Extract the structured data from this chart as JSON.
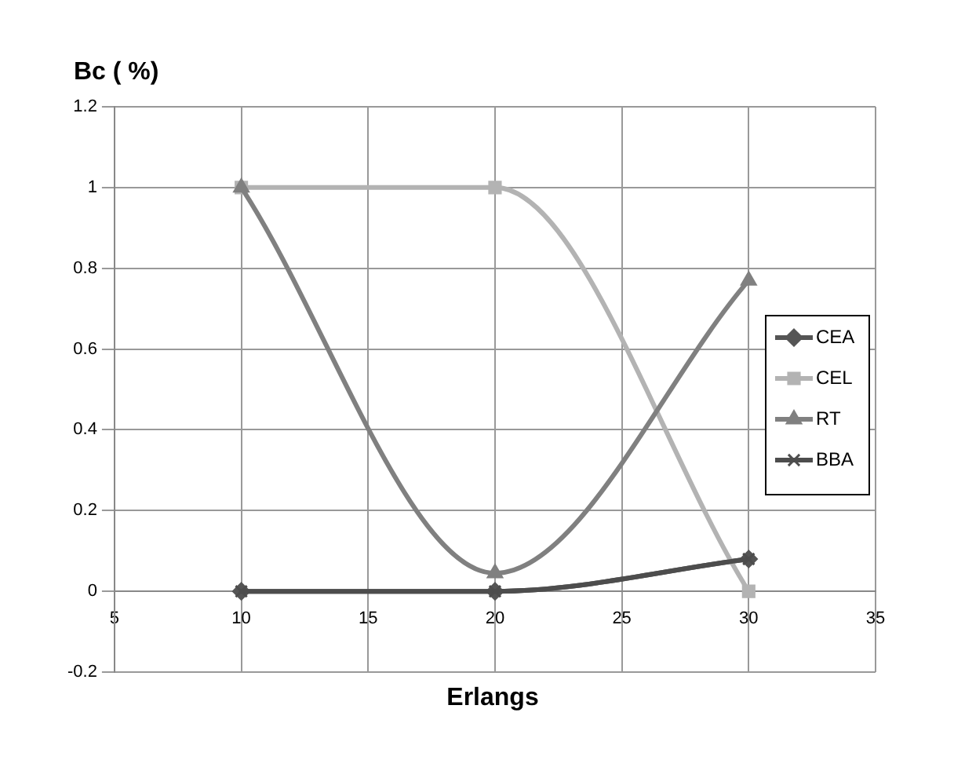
{
  "chart_data": {
    "type": "line",
    "ylabel": "Bc ( %)",
    "xlabel": "Erlangs",
    "x": [
      10,
      20,
      30
    ],
    "series": [
      {
        "name": "CEA",
        "color": "#555555",
        "values": [
          0,
          0,
          0.08
        ],
        "marker": "diamond"
      },
      {
        "name": "CEL",
        "color": "#b3b3b3",
        "values": [
          1,
          1,
          0
        ],
        "marker": "square"
      },
      {
        "name": "RT",
        "color": "#808080",
        "values": [
          1,
          0.045,
          0.77
        ],
        "marker": "triangle"
      },
      {
        "name": "BBA",
        "color": "#4d4d4d",
        "values": [
          0,
          0,
          0.08
        ],
        "marker": "cross"
      }
    ],
    "xlim": [
      5,
      35
    ],
    "xticks": [
      5,
      10,
      15,
      20,
      25,
      30,
      35
    ],
    "ylim": [
      -0.2,
      1.2
    ],
    "yticks": [
      -0.2,
      0,
      0.2,
      0.4,
      0.6,
      0.8,
      1,
      1.2
    ],
    "grid": true,
    "legend": "right",
    "line_style": "solid"
  }
}
